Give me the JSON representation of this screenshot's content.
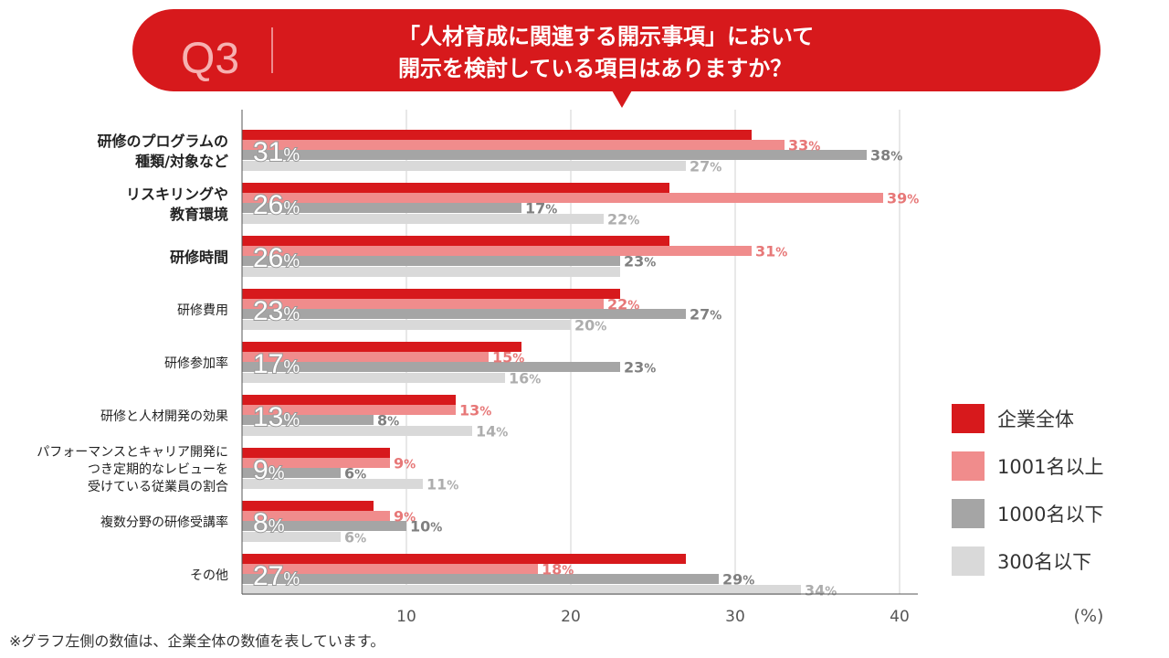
{
  "header": {
    "badge": "Q3",
    "question_line1": "「人材育成に関連する開示事項」において",
    "question_line2": "開示を検討している項目はありますか？"
  },
  "chart_data": {
    "type": "bar",
    "orientation": "horizontal",
    "xlim": [
      0,
      40
    ],
    "xticks": [
      "10",
      "20",
      "30",
      "40"
    ],
    "tick_values": [
      10,
      20,
      30,
      40
    ],
    "unit_label": "(%)",
    "percent_suffix": "%",
    "legend_position": "bottom-right",
    "categories": [
      {
        "lines": [
          "研修のプログラムの",
          "種類/対象など"
        ],
        "bold": true
      },
      {
        "lines": [
          "リスキリングや",
          "教育環境"
        ],
        "bold": true
      },
      {
        "lines": [
          "研修時間"
        ],
        "bold": true
      },
      {
        "lines": [
          "研修費用"
        ],
        "bold": false
      },
      {
        "lines": [
          "研修参加率"
        ],
        "bold": false
      },
      {
        "lines": [
          "研修と人材開発の効果"
        ],
        "bold": false
      },
      {
        "lines": [
          "パフォーマンスとキャリア開発に",
          "つき定期的なレビューを",
          "受けている従業員の割合"
        ],
        "bold": false
      },
      {
        "lines": [
          "複数分野の研修受講率"
        ],
        "bold": false
      },
      {
        "lines": [
          "その他"
        ],
        "bold": false
      }
    ],
    "series": [
      {
        "name": "企業全体",
        "color": "#D7191C",
        "label_color": "#999999",
        "values": [
          31,
          26,
          26,
          23,
          17,
          13,
          9,
          8,
          27
        ],
        "display": [
          "31",
          "26",
          "26",
          "23",
          "17",
          "13",
          "9",
          "8",
          "27"
        ]
      },
      {
        "name": "1001名以上",
        "color": "#F08C8C",
        "label_color": "#E77878",
        "values": [
          33,
          39,
          31,
          22,
          15,
          13,
          9,
          9,
          18
        ],
        "display": [
          "33",
          "39",
          "31",
          "22",
          "15",
          "13",
          "9",
          "9",
          "18"
        ]
      },
      {
        "name": "1000名以下",
        "color": "#A5A5A5",
        "label_color": "#7F7F7F",
        "values": [
          38,
          17,
          23,
          27,
          23,
          8,
          6,
          10,
          29
        ],
        "display": [
          "38",
          "17",
          "23",
          "27",
          "23",
          "8",
          "6",
          "10",
          "29"
        ]
      },
      {
        "name": "300名以下",
        "color": "#D9D9D9",
        "label_color": "#ADADAD",
        "values": [
          27,
          22,
          23,
          20,
          16,
          14,
          11,
          6,
          34
        ],
        "display": [
          "27",
          "22",
          "",
          "20",
          "16",
          "14",
          "11",
          "6",
          "34"
        ]
      }
    ]
  },
  "footnote": "※グラフ左側の数値は、企業全体の数値を表しています。"
}
